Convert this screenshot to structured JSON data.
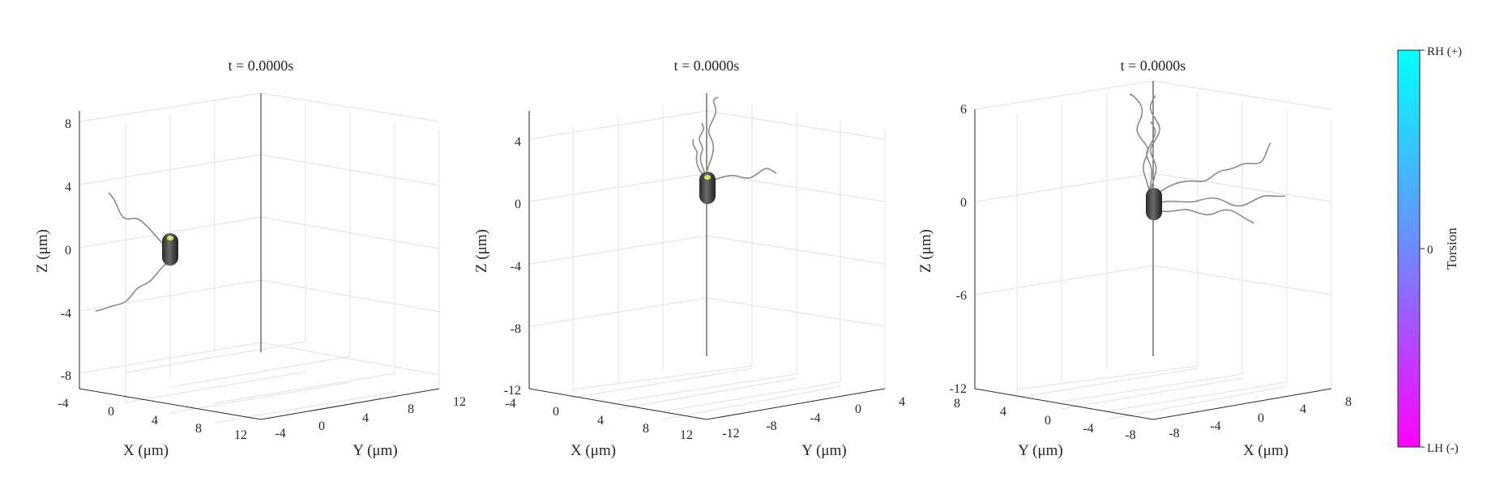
{
  "figure": {
    "colors": {
      "background": "#ffffff",
      "grid": "#e0e0e0",
      "axis": "#262626",
      "flagella": "#8a8a8a",
      "body": "#404040",
      "marker": "#d8e85a"
    }
  },
  "chart_data": [
    {
      "type": "scatter",
      "title": "t = 0.0000s",
      "zlabel": "Z (μm)",
      "left_axis_label": "X (μm)",
      "right_axis_label": "Y (μm)",
      "z_ticks": [
        "-8",
        "-4",
        "0",
        "4",
        "8"
      ],
      "left_axis_ticks": [
        "-4",
        "0",
        "4",
        "8",
        "12"
      ],
      "right_axis_ticks": [
        "-4",
        "0",
        "4",
        "8",
        "12"
      ],
      "zlim": [
        -9,
        10
      ],
      "cell": {
        "z": 0
      },
      "flagella": 2,
      "grid": true
    },
    {
      "type": "scatter",
      "title": "t = 0.0000s",
      "zlabel": "Z (μm)",
      "left_axis_label": "X (μm)",
      "right_axis_label": "Y (μm)",
      "z_ticks": [
        "-12",
        "-8",
        "-4",
        "0",
        "4"
      ],
      "left_axis_ticks": [
        "-4",
        "0",
        "4",
        "8",
        "12"
      ],
      "right_axis_ticks": [
        "-12",
        "-8",
        "-4",
        "0",
        "4"
      ],
      "zlim": [
        -12,
        6
      ],
      "cell": {
        "z": 1
      },
      "flagella": 4,
      "grid": true
    },
    {
      "type": "scatter",
      "title": "t = 0.0000s",
      "zlabel": "Z (μm)",
      "left_axis_label": "Y (μm)",
      "right_axis_label": "X (μm)",
      "z_ticks": [
        "-12",
        "-6",
        "0",
        "6"
      ],
      "left_axis_ticks": [
        "8",
        "4",
        "0",
        "-4",
        "-8"
      ],
      "right_axis_ticks": [
        "-8",
        "-4",
        "0",
        "4",
        "8"
      ],
      "zlim": [
        -12,
        6
      ],
      "cell": {
        "z": 0
      },
      "flagella": 5,
      "grid": true
    }
  ],
  "colorbar": {
    "label": "Torsion",
    "ticks": [
      "RH (+)",
      "0",
      "LH (-)"
    ],
    "colors": {
      "top": "#00ffff",
      "middle": "#6e8aff",
      "bottom": "#ff00ff"
    }
  }
}
